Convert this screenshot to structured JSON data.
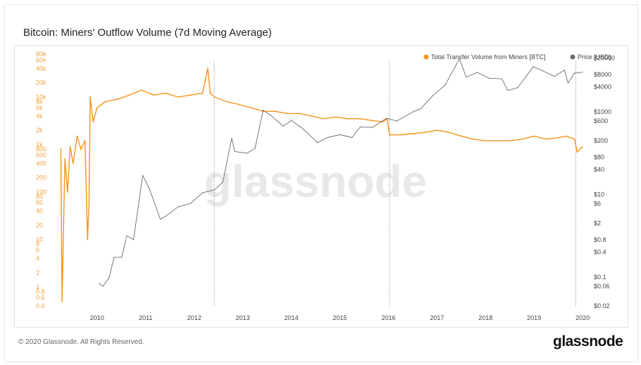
{
  "title": "Bitcoin: Miners' Outflow Volume (7d Moving Average)",
  "footer": {
    "copyright": "© 2020 Glassnode. All Rights Reserved.",
    "logo": "glassnode"
  },
  "watermark": "glassnode",
  "colors": {
    "volume": "#f7931a",
    "price": "#6b6b6b",
    "grid": "#dddddd"
  },
  "chart_data": {
    "type": "line",
    "title": "Bitcoin: Miners' Outflow Volume (7d Moving Average)",
    "legend_position": "top-right",
    "grid": false,
    "x": {
      "type": "date",
      "range": [
        "2009-07-01",
        "2020-06-30"
      ],
      "ticks": [
        "2010",
        "2011",
        "2012",
        "2013",
        "2014",
        "2015",
        "2016",
        "2017",
        "2018",
        "2019",
        "2020"
      ]
    },
    "y_left": {
      "scale": "log",
      "range": [
        0.4,
        80000
      ],
      "ticks": [
        "0.4",
        "0.6",
        "0.8",
        "1",
        "2",
        "4",
        "6",
        "8",
        "10",
        "20",
        "40",
        "60",
        "80",
        "100",
        "200",
        "400",
        "600",
        "800",
        "1k",
        "2k",
        "4k",
        "6k",
        "8k",
        "10k",
        "20k",
        "40k",
        "60k",
        "80k"
      ]
    },
    "y_right": {
      "scale": "log",
      "range": [
        0.02,
        25000
      ],
      "ticks": [
        "$0.02",
        "$0.06",
        "$0.1",
        "$0.4",
        "$0.8",
        "$2",
        "$6",
        "$10",
        "$40",
        "$80",
        "$200",
        "$600",
        "$1000",
        "$4000",
        "$8000",
        "$20000"
      ]
    },
    "event_markers": [
      "2012-11-28",
      "2016-07-09",
      "2020-05-11"
    ],
    "series": [
      {
        "name": "Total Transfer Volume from Miners [BTC]",
        "axis": "left",
        "points": [
          [
            "2009-10-01",
            800
          ],
          [
            "2009-10-10",
            0.5
          ],
          [
            "2009-11-01",
            500
          ],
          [
            "2009-11-20",
            100
          ],
          [
            "2009-12-10",
            900
          ],
          [
            "2010-01-01",
            400
          ],
          [
            "2010-02-01",
            1500
          ],
          [
            "2010-03-01",
            800
          ],
          [
            "2010-04-01",
            1200
          ],
          [
            "2010-04-20",
            10
          ],
          [
            "2010-05-01",
            60
          ],
          [
            "2010-05-10",
            10000
          ],
          [
            "2010-06-01",
            3000
          ],
          [
            "2010-07-01",
            6000
          ],
          [
            "2010-09-01",
            8000
          ],
          [
            "2010-12-01",
            9000
          ],
          [
            "2011-03-01",
            11000
          ],
          [
            "2011-06-01",
            14000
          ],
          [
            "2011-09-01",
            11000
          ],
          [
            "2011-12-01",
            12000
          ],
          [
            "2012-03-01",
            10000
          ],
          [
            "2012-06-01",
            11000
          ],
          [
            "2012-09-01",
            12000
          ],
          [
            "2012-10-10",
            40000
          ],
          [
            "2012-10-30",
            12000
          ],
          [
            "2012-12-01",
            10000
          ],
          [
            "2013-03-01",
            8000
          ],
          [
            "2013-06-01",
            7000
          ],
          [
            "2013-09-01",
            6000
          ],
          [
            "2013-12-01",
            5000
          ],
          [
            "2014-03-01",
            5000
          ],
          [
            "2014-06-01",
            4500
          ],
          [
            "2014-09-01",
            4500
          ],
          [
            "2014-12-01",
            4000
          ],
          [
            "2015-03-01",
            3500
          ],
          [
            "2015-06-01",
            3800
          ],
          [
            "2015-09-01",
            3500
          ],
          [
            "2015-12-01",
            3500
          ],
          [
            "2016-03-01",
            3200
          ],
          [
            "2016-05-20",
            3000
          ],
          [
            "2016-06-20",
            3500
          ],
          [
            "2016-07-10",
            1600
          ],
          [
            "2016-10-01",
            1600
          ],
          [
            "2017-01-01",
            1700
          ],
          [
            "2017-04-01",
            1800
          ],
          [
            "2017-07-01",
            2000
          ],
          [
            "2017-10-01",
            1800
          ],
          [
            "2018-01-01",
            1500
          ],
          [
            "2018-04-01",
            1300
          ],
          [
            "2018-07-01",
            1200
          ],
          [
            "2018-10-01",
            1200
          ],
          [
            "2019-01-01",
            1200
          ],
          [
            "2019-04-01",
            1300
          ],
          [
            "2019-07-01",
            1500
          ],
          [
            "2019-10-01",
            1300
          ],
          [
            "2020-01-01",
            1400
          ],
          [
            "2020-03-01",
            1500
          ],
          [
            "2020-05-01",
            1300
          ],
          [
            "2020-05-20",
            700
          ],
          [
            "2020-06-30",
            900
          ]
        ]
      },
      {
        "name": "Price [USD]",
        "axis": "right",
        "points": [
          [
            "2010-07-17",
            0.07
          ],
          [
            "2010-08-15",
            0.06
          ],
          [
            "2010-10-01",
            0.1
          ],
          [
            "2010-11-05",
            0.3
          ],
          [
            "2011-01-01",
            0.3
          ],
          [
            "2011-02-10",
            1
          ],
          [
            "2011-04-01",
            0.8
          ],
          [
            "2011-05-15",
            8
          ],
          [
            "2011-06-09",
            29
          ],
          [
            "2011-08-01",
            13
          ],
          [
            "2011-10-20",
            2.5
          ],
          [
            "2011-12-01",
            3
          ],
          [
            "2012-03-01",
            5
          ],
          [
            "2012-06-01",
            6
          ],
          [
            "2012-09-01",
            11
          ],
          [
            "2012-12-01",
            13
          ],
          [
            "2013-02-01",
            20
          ],
          [
            "2013-04-09",
            230
          ],
          [
            "2013-05-01",
            110
          ],
          [
            "2013-08-01",
            100
          ],
          [
            "2013-10-01",
            130
          ],
          [
            "2013-12-01",
            1100
          ],
          [
            "2014-02-01",
            800
          ],
          [
            "2014-05-01",
            450
          ],
          [
            "2014-07-01",
            620
          ],
          [
            "2014-10-01",
            380
          ],
          [
            "2015-01-14",
            180
          ],
          [
            "2015-04-01",
            240
          ],
          [
            "2015-07-01",
            280
          ],
          [
            "2015-10-01",
            240
          ],
          [
            "2015-12-01",
            430
          ],
          [
            "2016-03-01",
            420
          ],
          [
            "2016-06-15",
            700
          ],
          [
            "2016-09-01",
            600
          ],
          [
            "2017-01-01",
            1000
          ],
          [
            "2017-03-01",
            1200
          ],
          [
            "2017-06-01",
            2500
          ],
          [
            "2017-09-01",
            4500
          ],
          [
            "2017-12-17",
            19500
          ],
          [
            "2018-02-05",
            7000
          ],
          [
            "2018-05-01",
            9000
          ],
          [
            "2018-08-01",
            6500
          ],
          [
            "2018-11-01",
            6300
          ],
          [
            "2018-12-15",
            3300
          ],
          [
            "2019-03-01",
            3900
          ],
          [
            "2019-06-26",
            12500
          ],
          [
            "2019-09-01",
            10000
          ],
          [
            "2019-12-01",
            7200
          ],
          [
            "2020-02-15",
            10300
          ],
          [
            "2020-03-13",
            5000
          ],
          [
            "2020-05-01",
            8700
          ],
          [
            "2020-06-30",
            9100
          ]
        ]
      }
    ]
  }
}
